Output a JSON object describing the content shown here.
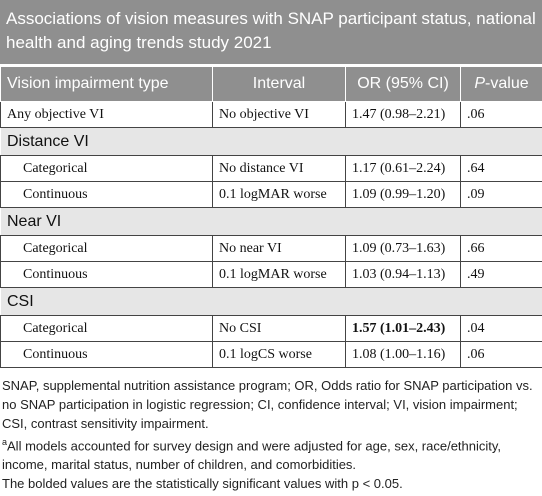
{
  "table": {
    "title": "Associations of vision measures with SNAP participant status, national health and aging trends study 2021",
    "header": [
      "Vision impairment type",
      "Interval",
      "OR (95% CI)",
      {
        "italic": "P",
        "text": "-value"
      }
    ],
    "rows": [
      {
        "cells": [
          "Any objective VI",
          "No objective VI",
          "1.47 (0.98–2.21)",
          ".06"
        ]
      },
      {
        "section": "Distance VI"
      },
      {
        "cells": [
          "Categorical",
          "No distance VI",
          "1.17 (0.61–2.24)",
          ".64"
        ]
      },
      {
        "cells": [
          "Continuous",
          "0.1 logMAR worse",
          "1.09 (0.99–1.20)",
          ".09"
        ]
      },
      {
        "section": "Near VI"
      },
      {
        "cells": [
          "Categorical",
          "No near VI",
          "1.09 (0.73–1.63)",
          ".66"
        ]
      },
      {
        "cells": [
          "Continuous",
          "0.1 logMAR worse",
          "1.03 (0.94–1.13)",
          ".49"
        ]
      },
      {
        "section": "CSI"
      },
      {
        "cells": [
          "Categorical",
          "No CSI",
          "1.57 (1.01–2.43)",
          ".04"
        ],
        "bold": [
          2
        ]
      },
      {
        "cells": [
          "Continuous",
          "0.1 logCS worse",
          "1.08 (1.00–1.16)",
          ".06"
        ]
      }
    ]
  },
  "footnotes": [
    {
      "text": "SNAP, supplemental nutrition assistance program; OR, Odds ratio for SNAP participation vs. no SNAP participation in logistic regression; CI, confidence interval; VI, vision impairment; CSI, contrast sensitivity impairment."
    },
    {
      "marker": "a",
      "text": "All models accounted for survey design and were adjusted for age, sex, race/ethnicity, income, marital status, number of children, and comorbidities."
    },
    {
      "text": "The bolded values are the statistically significant values with p < 0.05."
    }
  ]
}
